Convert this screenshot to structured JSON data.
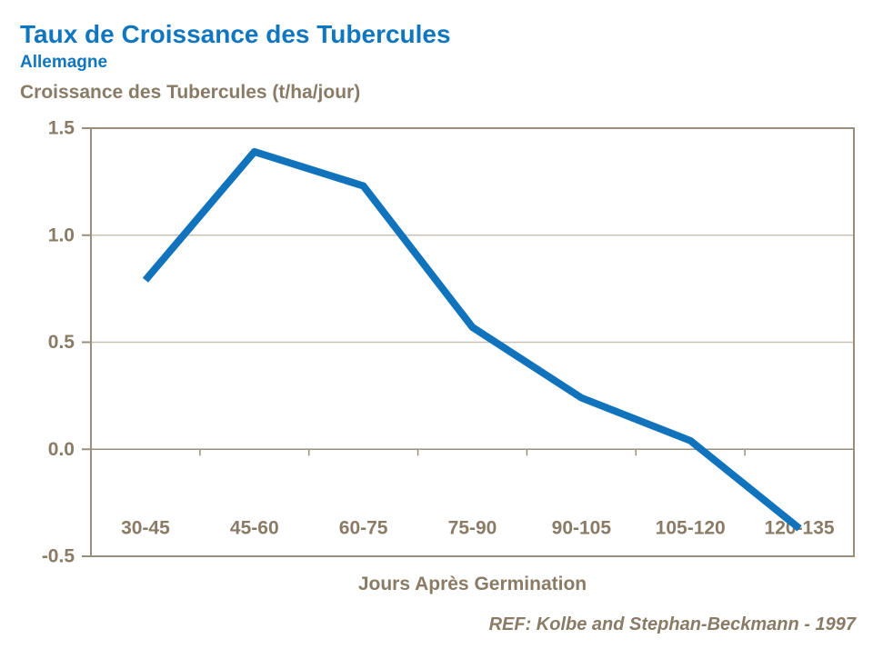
{
  "page": {
    "title": "Taux de Croissance des Tubercules",
    "subtitle": "Allemagne",
    "y_axis_title": "Croissance des Tubercules (t/ha/jour)",
    "x_axis_title": "Jours Après Germination",
    "reference": "REF: Kolbe and Stephan-Beckmann - 1997"
  },
  "colors": {
    "title_blue": "#1076BF",
    "line_blue": "#1173BC",
    "axis_text": "#8A7B66",
    "axis_line": "#9A8E7D",
    "gridline": "#C9C1B4",
    "background": "#FFFFFF"
  },
  "chart_data": {
    "type": "line",
    "title": "Taux de Croissance des Tubercules",
    "subtitle": "Allemagne",
    "categories": [
      "30-45",
      "45-60",
      "60-75",
      "75-90",
      "90-105",
      "105-120",
      "120-135"
    ],
    "values": [
      0.79,
      1.39,
      1.23,
      0.57,
      0.24,
      0.04,
      -0.37
    ],
    "series_name": "Croissance des Tubercules",
    "xlabel": "Jours Après Germination",
    "ylabel": "Croissance des Tubercules (t/ha/jour)",
    "ylim": [
      -0.5,
      1.5
    ],
    "yticks": [
      1.5,
      1.0,
      0.5,
      0.0,
      -0.5
    ],
    "grid": true,
    "legend": false,
    "annotation": "REF: Kolbe and Stephan-Beckmann - 1997"
  }
}
